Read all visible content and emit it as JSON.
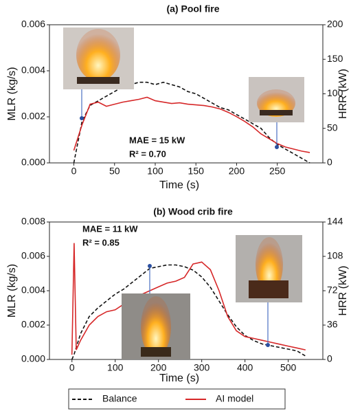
{
  "chart_data": [
    {
      "type": "line",
      "title": "(a) Pool fire",
      "xlabel": "Time (s)",
      "ylabel": "MLR (kg/s)",
      "y2label": "HRR (kW)",
      "x": [
        0,
        10,
        20,
        30,
        40,
        50,
        60,
        70,
        80,
        90,
        100,
        110,
        120,
        130,
        140,
        150,
        160,
        170,
        180,
        190,
        200,
        210,
        220,
        230,
        240,
        250,
        260,
        270,
        280,
        290
      ],
      "series": [
        {
          "name": "Balance",
          "color": "#111111",
          "dash": true,
          "values": [
            0,
            0.0018,
            0.0025,
            0.0027,
            0.0029,
            0.0031,
            0.0033,
            0.0034,
            0.0035,
            0.0035,
            0.0034,
            0.0035,
            0.0034,
            0.0033,
            0.0031,
            0.003,
            0.0028,
            0.0026,
            0.0024,
            0.0023,
            0.0021,
            0.0019,
            0.0017,
            0.0015,
            0.0011,
            0.0008,
            0.0006,
            0.0004,
            0.0002,
            0
          ]
        },
        {
          "name": "AI model",
          "color": "#d62728",
          "axis": "y2",
          "values": [
            18,
            55,
            85,
            88,
            82,
            85,
            88,
            90,
            92,
            95,
            90,
            88,
            86,
            87,
            85,
            84,
            83,
            81,
            78,
            73,
            67,
            60,
            52,
            42,
            35,
            28,
            23,
            20,
            17,
            15
          ]
        }
      ],
      "xlim": [
        -30,
        306
      ],
      "xticks": [
        0,
        50,
        100,
        150,
        200,
        250
      ],
      "ylim": [
        0,
        0.006
      ],
      "yticks": [
        {
          "value": 0,
          "label": "0.000"
        },
        {
          "value": 0.002,
          "label": "0.002"
        },
        {
          "value": 0.004,
          "label": "0.004"
        },
        {
          "value": 0.006,
          "label": "0.006"
        }
      ],
      "y2lim": [
        0,
        200
      ],
      "y2ticks": [
        0,
        50,
        100,
        150,
        200
      ],
      "annotations": [
        "MAE = 15 kW",
        "R² = 0.70"
      ]
    },
    {
      "type": "line",
      "title": "(b) Wood crib fire",
      "xlabel": "Time (s)",
      "ylabel": "MLR (kg/s)",
      "y2label": "HRR (kW)",
      "x": [
        0,
        5,
        10,
        20,
        40,
        60,
        80,
        100,
        120,
        140,
        160,
        180,
        200,
        220,
        240,
        260,
        280,
        300,
        320,
        340,
        360,
        380,
        400,
        420,
        440,
        460,
        480,
        500,
        520,
        540
      ],
      "series": [
        {
          "color": "#111111",
          "dash": true,
          "values": [
            0,
            0.0003,
            0.0007,
            0.0015,
            0.0025,
            0.003,
            0.0034,
            0.0038,
            0.0041,
            0.0045,
            0.0049,
            0.0053,
            0.0054,
            0.0055,
            0.0055,
            0.0054,
            0.0052,
            0.0048,
            0.0042,
            0.0034,
            0.0026,
            0.0019,
            0.0014,
            0.0011,
            0.0009,
            0.0008,
            0.0007,
            0.0006,
            0.0005,
            0.0002
          ]
        },
        {
          "color": "#d62728",
          "axis": "y2",
          "values": [
            5,
            122,
            10,
            20,
            36,
            45,
            50,
            52,
            58,
            62,
            68,
            72,
            76,
            80,
            82,
            86,
            100,
            102,
            94,
            72,
            45,
            30,
            24,
            22,
            20,
            18,
            16,
            14,
            12,
            10
          ]
        }
      ],
      "xlim": [
        -52,
        580
      ],
      "xticks": [
        0,
        100,
        200,
        300,
        400,
        500
      ],
      "ylim": [
        0,
        0.008
      ],
      "yticks": [
        {
          "value": 0,
          "label": "0.000"
        },
        {
          "value": 0.002,
          "label": "0.002"
        },
        {
          "value": 0.004,
          "label": "0.004"
        },
        {
          "value": 0.006,
          "label": "0.006"
        },
        {
          "value": 0.008,
          "label": "0.008"
        }
      ],
      "y2lim": [
        0,
        144
      ],
      "y2ticks": [
        0,
        36,
        72,
        108,
        144
      ],
      "annotations": [
        "MAE = 11 kW",
        "R² = 0.85"
      ]
    }
  ]
}
